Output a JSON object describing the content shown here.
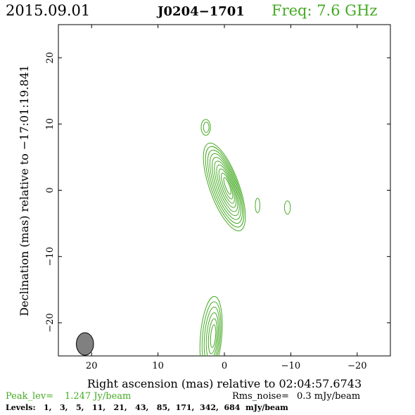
{
  "header": {
    "date": "2015.09.01",
    "source": "J0204−1701",
    "freq": "Freq: 7.6 GHz"
  },
  "chart_data": {
    "type": "contour",
    "xlabel": "Right ascension (mas) relative to 02:04:57.6743",
    "ylabel": "Declination (mas) relative to −17:01:19.841",
    "xlim": [
      25,
      -25
    ],
    "ylim": [
      -25,
      25
    ],
    "x_ticks": [
      {
        "value": 20,
        "label": "20"
      },
      {
        "value": 10,
        "label": "10"
      },
      {
        "value": 0,
        "label": "0"
      },
      {
        "value": -10,
        "label": "−10"
      },
      {
        "value": -20,
        "label": "−20"
      }
    ],
    "y_ticks": [
      {
        "value": 20,
        "label": "20"
      },
      {
        "value": 10,
        "label": "10"
      },
      {
        "value": 0,
        "label": "0"
      },
      {
        "value": -10,
        "label": "−10"
      },
      {
        "value": -20,
        "label": "−20"
      }
    ],
    "beam": {
      "x": 21,
      "y": -23.2,
      "major": 3.4,
      "minor": 1.3,
      "pa_deg": 0
    },
    "contour_color": "#44aa22",
    "components": [
      {
        "name": "core",
        "x": 0.0,
        "y": 0.5,
        "rx_max": 2.2,
        "ry_max": 7.0,
        "tilt_deg": -20,
        "levels": 10
      },
      {
        "name": "north-knot",
        "x": 2.8,
        "y": 9.5,
        "rx_max": 0.7,
        "ry_max": 1.2,
        "tilt_deg": 0,
        "levels": 2
      },
      {
        "name": "east-blob-1",
        "x": -5.0,
        "y": -2.3,
        "rx_max": 0.35,
        "ry_max": 1.1,
        "tilt_deg": 0,
        "levels": 1
      },
      {
        "name": "east-blob-2",
        "x": -9.5,
        "y": -2.6,
        "rx_max": 0.45,
        "ry_max": 1.0,
        "tilt_deg": 0,
        "levels": 1
      },
      {
        "name": "south-feature",
        "x": 2.0,
        "y": -22.0,
        "rx_max": 1.6,
        "ry_max": 6.0,
        "tilt_deg": 5,
        "levels": 6
      }
    ],
    "peak_label": "Peak_lev=",
    "peak_value": "1.247 Jy/beam",
    "rms_label": "Rms_noise=",
    "rms_value": "0.3 mJy/beam",
    "levels_label": "Levels:",
    "levels_text": "1,   3,   5,   11,   21,   43,   85,  171,  342,  684  mJy/beam"
  }
}
